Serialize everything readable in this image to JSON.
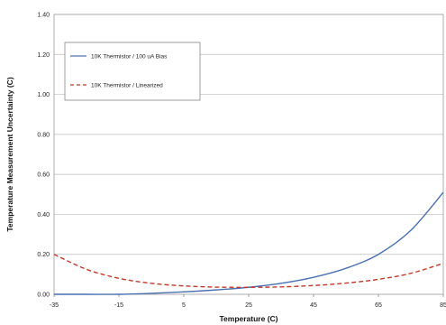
{
  "chart_data": {
    "type": "line",
    "xlabel": "Temperature (C)",
    "ylabel": "Temperature Measurement Uncertainty (C)",
    "xlim": [
      -35,
      85
    ],
    "ylim": [
      0,
      1.4
    ],
    "x_ticks": [
      -35,
      -15,
      5,
      25,
      45,
      65,
      85
    ],
    "x_tick_labels": [
      "-35",
      "-15",
      "5",
      "25",
      "45",
      "65",
      "85"
    ],
    "y_ticks": [
      0,
      0.2,
      0.4,
      0.6,
      0.8,
      1.0,
      1.2,
      1.4
    ],
    "y_tick_labels": [
      "0.00",
      "0.20",
      "0.40",
      "0.60",
      "0.80",
      "1.00",
      "1.20",
      "1.40"
    ],
    "grid": "horizontal",
    "legend_position": "top-left",
    "series": [
      {
        "name": "10K Thermistor / 100 uA Bias",
        "color": "#4a6fb0",
        "style": "solid",
        "x": [
          -35,
          -25,
          -15,
          -5,
          5,
          15,
          25,
          35,
          45,
          55,
          65,
          75,
          85
        ],
        "y": [
          0.0,
          0.0,
          0.0,
          0.005,
          0.012,
          0.022,
          0.035,
          0.055,
          0.085,
          0.13,
          0.2,
          0.32,
          0.51
        ]
      },
      {
        "name": "10K Thermistor / Linearized",
        "color": "#c0392b",
        "style": "dashed",
        "x": [
          -35,
          -25,
          -15,
          -5,
          5,
          15,
          25,
          35,
          45,
          55,
          65,
          75,
          85
        ],
        "y": [
          0.2,
          0.125,
          0.08,
          0.055,
          0.042,
          0.036,
          0.035,
          0.037,
          0.044,
          0.056,
          0.075,
          0.105,
          0.155
        ]
      }
    ]
  }
}
